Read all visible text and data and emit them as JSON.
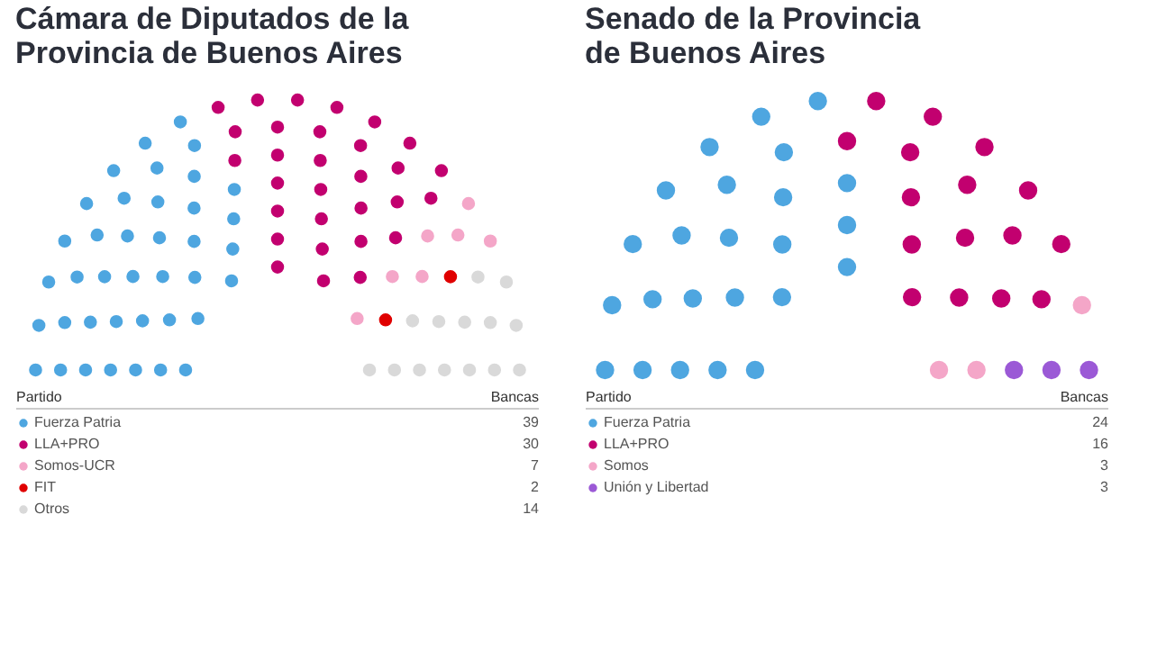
{
  "chart_data": [
    {
      "type": "other",
      "title": "Cámara de Diputados de la\nProvincia de Buenos Aires",
      "legend_title": "Partido",
      "annotations": [
        "Bancas"
      ],
      "data_labels": true,
      "categories": [
        "Fuerza Patria",
        "LLA+PRO",
        "Somos-UCR",
        "FIT",
        "Otros"
      ],
      "values": [
        39,
        30,
        7,
        2,
        14
      ],
      "colors": [
        "#4ea6e0",
        "#c2006f",
        "#f4a6c8",
        "#e00000",
        "#d9d9d9"
      ]
    },
    {
      "type": "other",
      "title": "    Senado de la Provincia\nde Buenos Aires",
      "legend_title": "Partido",
      "annotations": [
        "Bancas"
      ],
      "data_labels": true,
      "categories": [
        "Fuerza Patria",
        "LLA+PRO",
        "Somos",
        "Unión y Libertad"
      ],
      "values": [
        24,
        16,
        3,
        3
      ],
      "colors": [
        "#4ea6e0",
        "#c2006f",
        "#f4a6c8",
        "#9b59d6"
      ]
    }
  ]
}
